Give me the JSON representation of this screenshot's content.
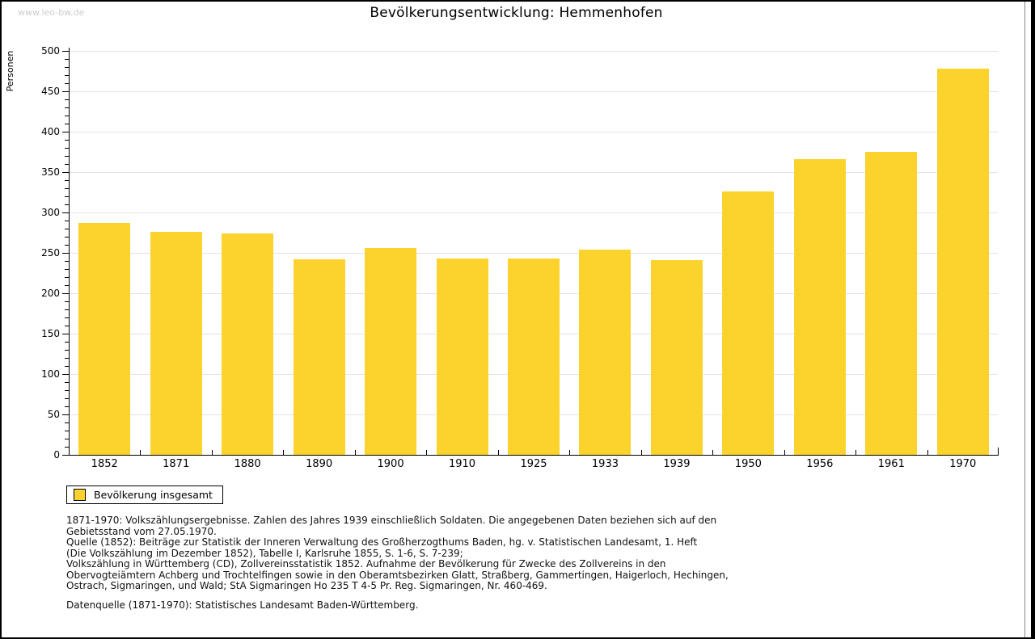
{
  "watermark": "www.leo-bw.de",
  "chart_data": {
    "type": "bar",
    "title": "Bevölkerungsentwicklung: Hemmenhofen",
    "xlabel": "",
    "ylabel": "Personen",
    "categories": [
      "1852",
      "1871",
      "1880",
      "1890",
      "1900",
      "1910",
      "1925",
      "1933",
      "1939",
      "1950",
      "1956",
      "1961",
      "1970"
    ],
    "series": [
      {
        "name": "Bevölkerung insgesamt",
        "values": [
          287,
          276,
          274,
          242,
          256,
          243,
          243,
          254,
          241,
          326,
          366,
          375,
          478
        ]
      }
    ],
    "ylim": [
      0,
      500
    ],
    "ytick_major": 50,
    "ytick_minor": 10,
    "grid": "horizontal-major",
    "legend_position": "bottom-left",
    "bar_color": "#FCD32D"
  },
  "legend": {
    "label": "Bevölkerung insgesamt",
    "swatch_color": "#FCD32D"
  },
  "footer": {
    "lines": [
      "1871-1970: Volkszählungsergebnisse. Zahlen des Jahres 1939 einschließlich Soldaten. Die angegebenen Daten beziehen sich auf den",
      "Gebietsstand vom 27.05.1970.",
      "Quelle (1852): Beiträge zur Statistik der Inneren Verwaltung des Großherzogthums Baden, hg. v. Statistischen Landesamt, 1. Heft",
      "(Die Volkszählung im Dezember 1852), Tabelle I, Karlsruhe 1855, S. 1-6, S. 7-239;",
      "Volkszählung in Württemberg (CD), Zollvereinsstatistik 1852. Aufnahme der Bevölkerung für Zwecke des Zollvereins in den",
      "Obervogteiämtern Achberg und Trochtelfingen sowie in den Oberamtsbezirken Glatt, Straßberg, Gammertingen, Haigerloch, Hechingen,",
      "Ostrach, Sigmaringen, und Wald; StA Sigmaringen Ho 235 T 4-5 Pr. Reg. Sigmaringen, Nr. 460-469."
    ],
    "datenquelle": "Datenquelle (1871-1970): Statistisches Landesamt Baden-Württemberg."
  },
  "colors": {
    "bar": "#FCD32D",
    "grid": "#E3E3E3",
    "axis": "#000000",
    "watermark": "#CCCCCC",
    "frame_border": "#000000",
    "background": "#FFFFFF"
  }
}
